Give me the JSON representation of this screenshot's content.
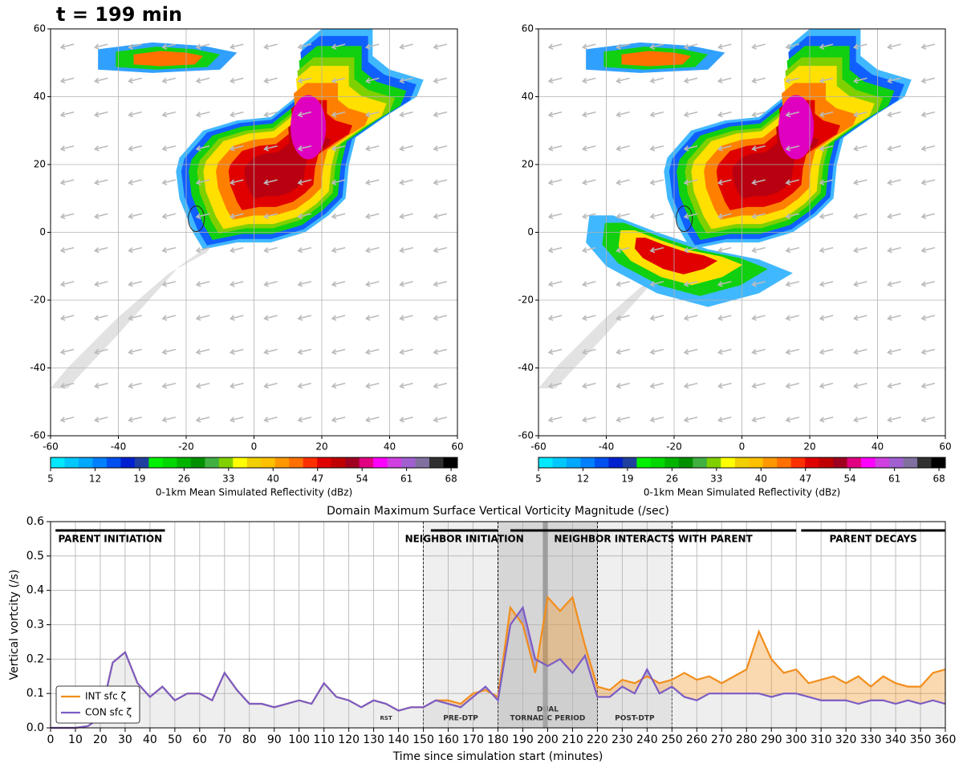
{
  "chart_data": [
    {
      "type": "map",
      "title": "t = 199 min",
      "xlim": [
        -60,
        60
      ],
      "ylim": [
        -60,
        60
      ],
      "xticks": [
        -60,
        -40,
        -20,
        0,
        20,
        40,
        60
      ],
      "yticks": [
        -60,
        -40,
        -20,
        0,
        20,
        40,
        60
      ],
      "grid": true,
      "colorbar": {
        "label": "0-1km Mean Simulated Reflectivity (dBz)",
        "lim": [
          5,
          69
        ],
        "ticks": [
          5,
          12,
          19,
          26,
          33,
          40,
          47,
          54,
          61,
          68
        ],
        "colors": [
          "#00e8ff",
          "#00c8ff",
          "#00a8ff",
          "#0080ff",
          "#0050f0",
          "#0020d0",
          "#2040a0",
          "#00f000",
          "#00d800",
          "#00b400",
          "#009000",
          "#40b040",
          "#80d000",
          "#ffff00",
          "#f0d000",
          "#ffc000",
          "#ff9800",
          "#ff7000",
          "#ff3000",
          "#e00000",
          "#c00000",
          "#a00020",
          "#e00080",
          "#ff00ff",
          "#d040e0",
          "#a060d0",
          "#8070a0",
          "#303030",
          "#000000"
        ]
      }
    },
    {
      "type": "map",
      "xlim": [
        -60,
        60
      ],
      "ylim": [
        -60,
        60
      ],
      "xticks": [
        -60,
        -40,
        -20,
        0,
        20,
        40,
        60
      ],
      "yticks": [
        -60,
        -40,
        -20,
        0,
        20,
        40,
        60
      ],
      "grid": true,
      "colorbar": {
        "label": "0-1km Mean Simulated Reflectivity (dBz)",
        "lim": [
          5,
          69
        ],
        "ticks": [
          5,
          12,
          19,
          26,
          33,
          40,
          47,
          54,
          61,
          68
        ],
        "colors": [
          "#00e8ff",
          "#00c8ff",
          "#00a8ff",
          "#0080ff",
          "#0050f0",
          "#0020d0",
          "#2040a0",
          "#00f000",
          "#00d800",
          "#00b400",
          "#009000",
          "#40b040",
          "#80d000",
          "#ffff00",
          "#f0d000",
          "#ffc000",
          "#ff9800",
          "#ff7000",
          "#ff3000",
          "#e00000",
          "#c00000",
          "#a00020",
          "#e00080",
          "#ff00ff",
          "#d040e0",
          "#a060d0",
          "#8070a0",
          "#303030",
          "#000000"
        ]
      }
    },
    {
      "type": "line",
      "title": "Domain Maximum Surface Vertical Vorticity Magnitude (/sec)",
      "xlabel": "Time since simulation start (minutes)",
      "ylabel": "Vertical vortcity (/s)",
      "xlim": [
        0,
        360
      ],
      "ylim": [
        0,
        0.6
      ],
      "xticks": [
        0,
        10,
        20,
        30,
        40,
        50,
        60,
        70,
        80,
        90,
        100,
        110,
        120,
        130,
        140,
        150,
        160,
        170,
        180,
        190,
        200,
        210,
        220,
        230,
        240,
        250,
        260,
        270,
        280,
        290,
        300,
        310,
        320,
        330,
        340,
        350,
        360
      ],
      "yticks": [
        {
          "value": 0,
          "label": "0.0"
        },
        0.1,
        0.2,
        0.3,
        0.4,
        0.5,
        0.6
      ],
      "grid": true,
      "legend": "lower left",
      "x": [
        0,
        5,
        10,
        15,
        20,
        25,
        30,
        35,
        40,
        45,
        50,
        55,
        60,
        65,
        70,
        75,
        80,
        85,
        90,
        95,
        100,
        105,
        110,
        115,
        120,
        125,
        130,
        135,
        140,
        145,
        150,
        155,
        160,
        165,
        170,
        175,
        180,
        185,
        190,
        195,
        200,
        205,
        210,
        215,
        220,
        225,
        230,
        235,
        240,
        245,
        250,
        255,
        260,
        265,
        270,
        275,
        280,
        285,
        290,
        295,
        300,
        305,
        310,
        315,
        320,
        325,
        330,
        335,
        340,
        345,
        350,
        355,
        360
      ],
      "series": [
        {
          "name": "INT sfc ζ",
          "color": "#f28e1c",
          "values": [
            0,
            0,
            0,
            0.005,
            0.03,
            0.19,
            0.22,
            0.13,
            0.09,
            0.12,
            0.08,
            0.1,
            0.1,
            0.08,
            0.16,
            0.11,
            0.07,
            0.07,
            0.06,
            0.07,
            0.08,
            0.07,
            0.13,
            0.09,
            0.08,
            0.06,
            0.08,
            0.07,
            0.05,
            0.06,
            0.06,
            0.08,
            0.08,
            0.07,
            0.1,
            0.11,
            0.09,
            0.35,
            0.3,
            0.16,
            0.38,
            0.34,
            0.38,
            0.24,
            0.12,
            0.11,
            0.14,
            0.13,
            0.15,
            0.13,
            0.14,
            0.16,
            0.14,
            0.15,
            0.13,
            0.15,
            0.17,
            0.28,
            0.2,
            0.16,
            0.17,
            0.13,
            0.14,
            0.15,
            0.13,
            0.15,
            0.12,
            0.15,
            0.13,
            0.12,
            0.12,
            0.16,
            0.17
          ]
        },
        {
          "name": "CON sfc ζ",
          "color": "#7b5cc4",
          "values": [
            0,
            0,
            0,
            0.005,
            0.03,
            0.19,
            0.22,
            0.13,
            0.09,
            0.12,
            0.08,
            0.1,
            0.1,
            0.08,
            0.16,
            0.11,
            0.07,
            0.07,
            0.06,
            0.07,
            0.08,
            0.07,
            0.13,
            0.09,
            0.08,
            0.06,
            0.08,
            0.07,
            0.05,
            0.06,
            0.06,
            0.08,
            0.07,
            0.06,
            0.09,
            0.12,
            0.08,
            0.3,
            0.35,
            0.2,
            0.18,
            0.2,
            0.16,
            0.21,
            0.09,
            0.09,
            0.12,
            0.1,
            0.17,
            0.1,
            0.12,
            0.09,
            0.08,
            0.1,
            0.1,
            0.1,
            0.1,
            0.1,
            0.09,
            0.1,
            0.1,
            0.09,
            0.08,
            0.08,
            0.08,
            0.07,
            0.08,
            0.08,
            0.07,
            0.08,
            0.07,
            0.08,
            0.07
          ]
        }
      ],
      "regions": [
        {
          "label": [
            "PRE-DTP"
          ],
          "start": 150,
          "end": 180,
          "color": "#efefef"
        },
        {
          "label": [
            "DUAL",
            "TORNADIC PERIOD"
          ],
          "start": 180,
          "end": 220,
          "color": "#d6d6d6"
        },
        {
          "label": [
            "POST-DTP"
          ],
          "start": 220,
          "end": 250,
          "color": "#efefef"
        }
      ],
      "annotations": [
        {
          "label": "RST",
          "x": 135
        }
      ],
      "current_time": 199,
      "phases": [
        {
          "label": "PARENT INITIATION",
          "start": 2,
          "end": 46
        },
        {
          "label": "NEIGHBOR INITIATION",
          "start": 153,
          "end": 180
        },
        {
          "label": "NEIGHBOR INTERACTS WITH PARENT",
          "start": 185,
          "end": 300
        },
        {
          "label": "PARENT DECAYS",
          "start": 302,
          "end": 360
        }
      ]
    }
  ]
}
